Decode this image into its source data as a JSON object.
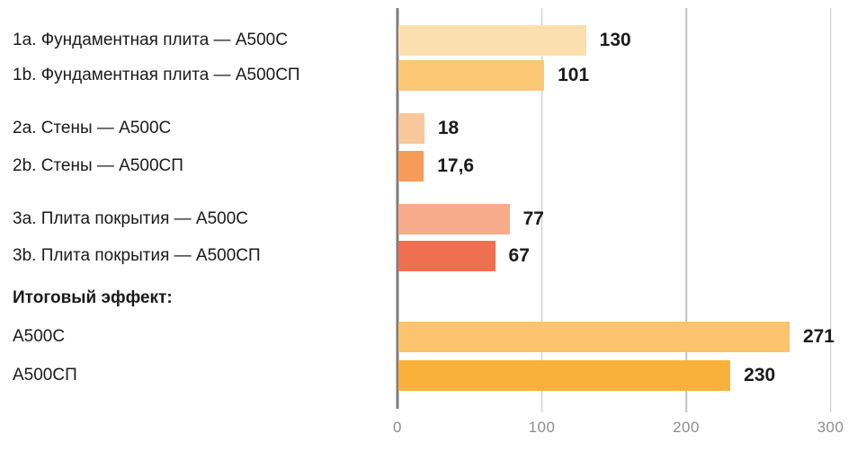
{
  "chart_data": {
    "type": "bar",
    "orientation": "horizontal",
    "title": "",
    "xlabel": "",
    "ylabel": "",
    "xlim": [
      0,
      300
    ],
    "x_ticks": [
      "0",
      "100",
      "200",
      "300"
    ],
    "grid": true,
    "section_header": "Итоговый эффект:",
    "rows": [
      {
        "label": "1a. Фундаментная плита — А500С",
        "value": 130,
        "display": "130",
        "color": "#fbdfae"
      },
      {
        "label": "1b. Фундаментная плита — А500СП",
        "value": 101,
        "display": "101",
        "color": "#fcc873"
      },
      {
        "label": "2a. Стены — А500С",
        "value": 18,
        "display": "18",
        "color": "#f8c79c"
      },
      {
        "label": "2b. Стены — А500СП",
        "value": 17.6,
        "display": "17,6",
        "color": "#f79c58"
      },
      {
        "label": "3a. Плита покрытия — А500С",
        "value": 77,
        "display": "77",
        "color": "#f7ab8a"
      },
      {
        "label": "3b. Плита покрытия — А500СП",
        "value": 67,
        "display": "67",
        "color": "#ef7050"
      },
      {
        "label": "А500С",
        "value": 271,
        "display": "271",
        "color": "#fcc46e",
        "total": true
      },
      {
        "label": "А500СП",
        "value": 230,
        "display": "230",
        "color": "#f9b13c",
        "total": true
      }
    ],
    "colors": {
      "axis_line": "#7d7d7d",
      "gridline": "#c3c3c3",
      "tick_label": "#8c8c8c",
      "value_label": "#1a1a1a",
      "row_label": "#1a1a1a"
    }
  }
}
